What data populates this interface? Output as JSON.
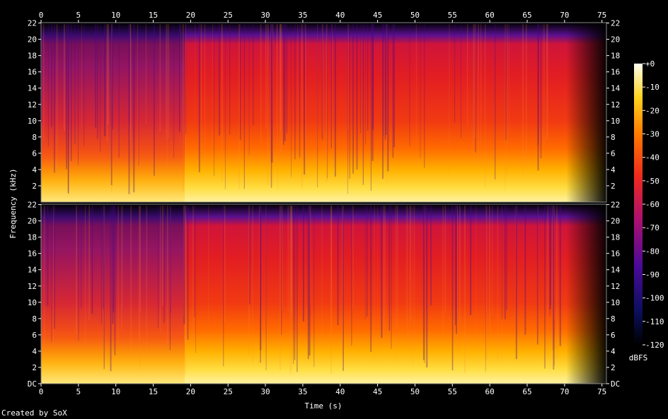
{
  "chart_data": {
    "type": "heatmap",
    "xlabel": "Time (s)",
    "ylabel": "Frequency (kHz)",
    "x_ticks": [
      0,
      5,
      10,
      15,
      20,
      25,
      30,
      35,
      40,
      45,
      50,
      55,
      60,
      65,
      70,
      75
    ],
    "x_range": [
      0,
      75.6
    ],
    "channels": [
      {
        "y_tick_labels": [
          "22",
          "20",
          "18",
          "16",
          "14",
          "12",
          "10",
          "8",
          "6",
          "4",
          "2"
        ],
        "y_tick_values": [
          22,
          20,
          18,
          16,
          14,
          12,
          10,
          8,
          6,
          4,
          2
        ]
      },
      {
        "y_tick_labels": [
          "22",
          "20",
          "18",
          "16",
          "14",
          "12",
          "10",
          "8",
          "6",
          "4",
          "2",
          "DC"
        ],
        "y_tick_values": [
          22,
          20,
          18,
          16,
          14,
          12,
          10,
          8,
          6,
          4,
          2,
          0
        ]
      }
    ],
    "y_range_khz": [
      0,
      22.05
    ],
    "colorbar": {
      "unit": "dBFS",
      "tick_labels": [
        "+0",
        "-10",
        "-20",
        "-30",
        "-40",
        "-50",
        "-60",
        "-70",
        "-80",
        "-90",
        "-100",
        "-110",
        "-120"
      ],
      "range": [
        -120,
        0
      ]
    },
    "legend_placement": "right",
    "grid": false
  },
  "footer": {
    "credit": "Created by SoX"
  }
}
